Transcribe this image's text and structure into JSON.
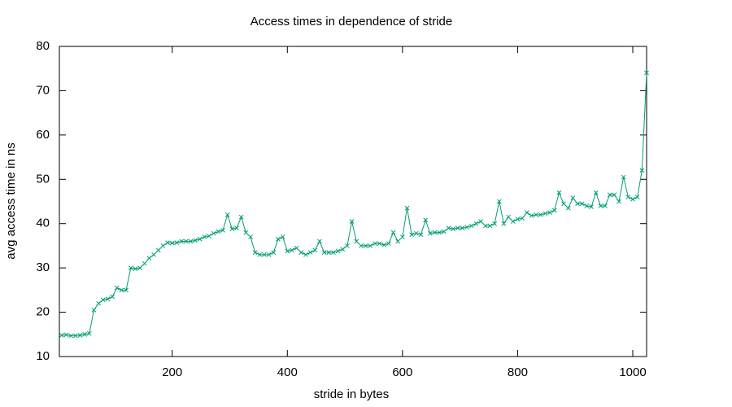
{
  "chart_data": {
    "type": "line",
    "title": "Access times in dependence of stride",
    "x_label": "stride in bytes",
    "y_label": "avg access time in ns",
    "x": [
      8,
      16,
      24,
      32,
      40,
      48,
      56,
      64,
      72,
      80,
      88,
      96,
      104,
      112,
      120,
      128,
      136,
      144,
      152,
      160,
      168,
      176,
      184,
      192,
      200,
      208,
      216,
      224,
      232,
      240,
      248,
      256,
      264,
      272,
      280,
      288,
      296,
      304,
      312,
      320,
      328,
      336,
      344,
      352,
      360,
      368,
      376,
      384,
      392,
      400,
      408,
      416,
      424,
      432,
      440,
      448,
      456,
      464,
      472,
      480,
      488,
      496,
      504,
      512,
      520,
      528,
      536,
      544,
      552,
      560,
      568,
      576,
      584,
      592,
      600,
      608,
      616,
      624,
      632,
      640,
      648,
      656,
      664,
      672,
      680,
      688,
      696,
      704,
      712,
      720,
      728,
      736,
      744,
      752,
      760,
      768,
      776,
      784,
      792,
      800,
      808,
      816,
      824,
      832,
      840,
      848,
      856,
      864,
      872,
      880,
      888,
      896,
      904,
      912,
      920,
      928,
      936,
      944,
      952,
      960,
      968,
      976,
      984,
      992,
      1000,
      1008,
      1016,
      1024
    ],
    "series": [
      {
        "color": "#009e73",
        "marker": "x",
        "values": [
          14.8,
          14.9,
          14.7,
          14.7,
          14.8,
          15,
          15.2,
          20.5,
          22,
          22.8,
          23,
          23.5,
          25.5,
          25,
          25,
          30,
          29.8,
          30,
          31,
          32.2,
          33,
          34,
          35,
          35.7,
          35.6,
          35.7,
          36,
          36,
          36,
          36.2,
          36.5,
          37,
          37.2,
          37.8,
          38.2,
          38.5,
          42,
          38.8,
          39,
          41.5,
          38,
          37,
          33.5,
          33,
          33,
          33,
          33.5,
          36.5,
          37,
          33.8,
          34,
          34.5,
          33.5,
          33,
          33.5,
          34,
          36,
          33.5,
          33.5,
          33.5,
          33.8,
          34.2,
          35,
          40.5,
          36,
          35,
          35,
          35,
          35.5,
          35.5,
          35.2,
          35.5,
          38,
          36,
          37,
          43.5,
          37.5,
          37.8,
          37.5,
          40.8,
          37.8,
          38,
          38,
          38.2,
          39,
          38.8,
          39,
          39,
          39.2,
          39.5,
          40,
          40.5,
          39.5,
          39.5,
          40,
          45,
          40,
          41.5,
          40.5,
          41,
          41.2,
          42.5,
          41.8,
          42,
          42,
          42.3,
          42.5,
          43,
          47,
          44.5,
          43.5,
          45.8,
          44.5,
          44.5,
          44,
          43.8,
          47,
          44,
          44,
          46.5,
          46.5,
          45,
          50.5,
          46,
          45.5,
          46,
          52,
          74
        ]
      }
    ],
    "xlim": [
      4,
      1024
    ],
    "ylim": [
      10,
      80
    ],
    "xticks": [
      200,
      400,
      600,
      800,
      1000
    ],
    "yticks": [
      10,
      20,
      30,
      40,
      50,
      60,
      70,
      80
    ],
    "grid": false
  }
}
